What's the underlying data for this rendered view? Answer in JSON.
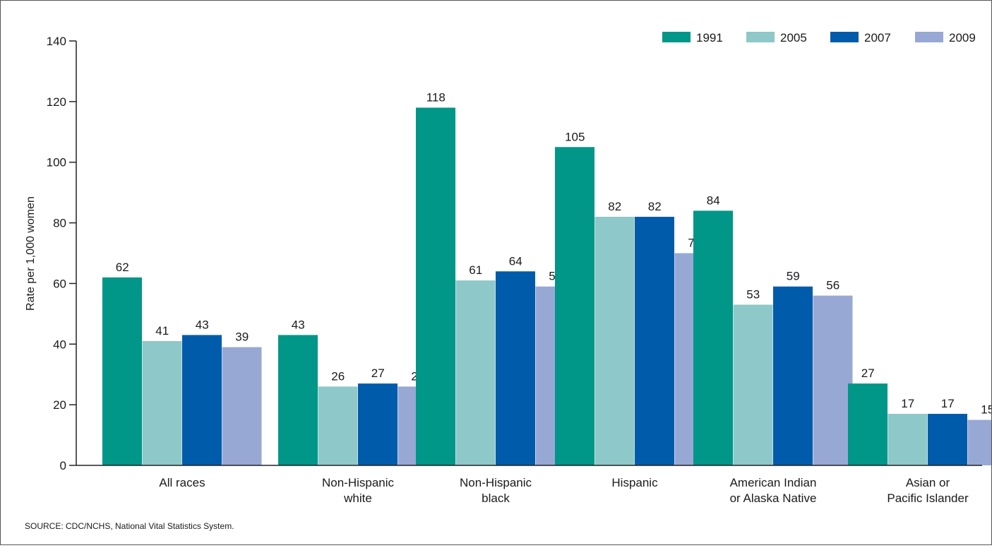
{
  "chart_data": {
    "type": "bar",
    "title": "",
    "ylabel": "Rate per 1,000 women",
    "xlabel": "",
    "ylim": [
      0,
      140
    ],
    "yticks": [
      0,
      20,
      40,
      60,
      80,
      100,
      120,
      140
    ],
    "legend_position": "top-right",
    "categories": [
      [
        "All races"
      ],
      [
        "Non-Hispanic",
        "white"
      ],
      [
        "Non-Hispanic",
        "black"
      ],
      [
        "Hispanic"
      ],
      [
        "American Indian",
        "or Alaska Native"
      ],
      [
        "Asian or",
        "Pacific Islander"
      ]
    ],
    "series": [
      {
        "name": "1991",
        "color": "#009688",
        "values": [
          62,
          43,
          118,
          105,
          84,
          27
        ]
      },
      {
        "name": "2005",
        "color": "#8ec8c8",
        "values": [
          41,
          26,
          61,
          82,
          53,
          17
        ]
      },
      {
        "name": "2007",
        "color": "#005bab",
        "values": [
          43,
          27,
          64,
          82,
          59,
          17
        ]
      },
      {
        "name": "2009",
        "color": "#98a8d4",
        "values": [
          39,
          26,
          59,
          70,
          56,
          15
        ]
      }
    ]
  },
  "footer": {
    "source": "SOURCE: CDC/NCHS, National Vital Statistics System."
  }
}
